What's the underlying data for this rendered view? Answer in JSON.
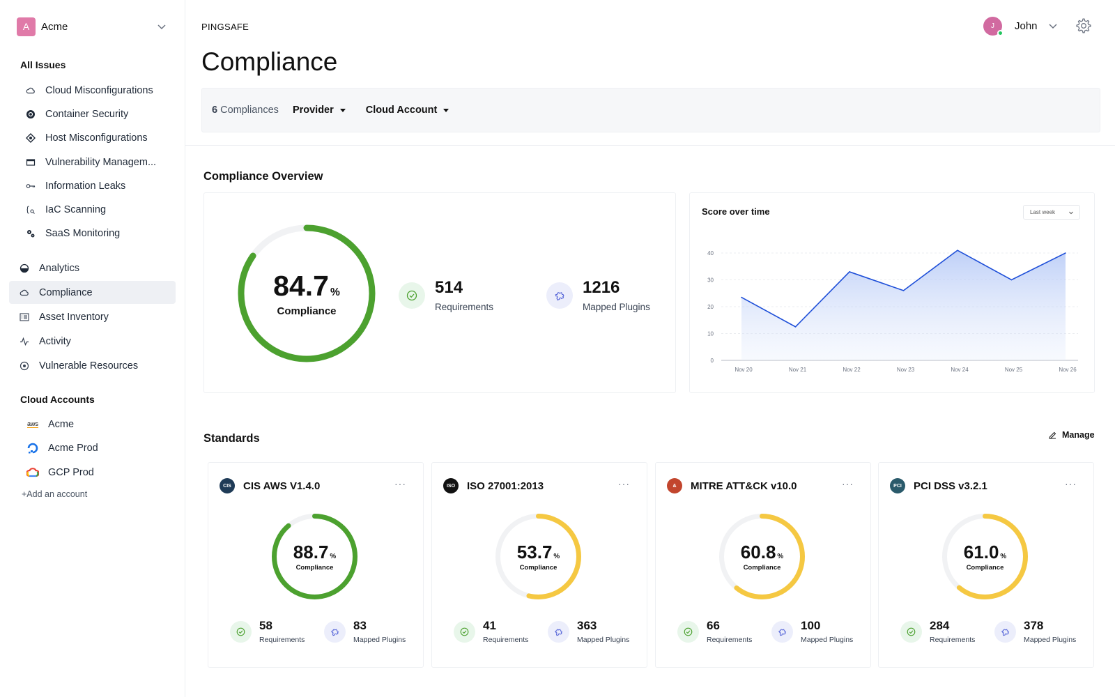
{
  "sidebar": {
    "org": {
      "initial": "A",
      "name": "Acme"
    },
    "all_issues_title": "All Issues",
    "issue_items": [
      {
        "label": "Cloud Misconfigurations",
        "icon": "cloud-icon"
      },
      {
        "label": "Container Security",
        "icon": "container-icon"
      },
      {
        "label": "Host Misconfigurations",
        "icon": "host-icon"
      },
      {
        "label": "Vulnerability Managem...",
        "icon": "card-icon"
      },
      {
        "label": "Information Leaks",
        "icon": "key-icon"
      },
      {
        "label": "IaC Scanning",
        "icon": "code-icon"
      },
      {
        "label": "SaaS Monitoring",
        "icon": "gears-icon"
      }
    ],
    "main_items": [
      {
        "label": "Analytics",
        "icon": "pie-icon"
      },
      {
        "label": "Compliance",
        "icon": "cloud-icon",
        "active": true
      },
      {
        "label": "Asset Inventory",
        "icon": "list-icon"
      },
      {
        "label": "Activity",
        "icon": "activity-icon"
      },
      {
        "label": "Vulnerable Resources",
        "icon": "target-icon"
      }
    ],
    "cloud_accounts_title": "Cloud Accounts",
    "accounts": [
      {
        "label": "Acme",
        "icon": "aws-icon",
        "icon_text": "aws"
      },
      {
        "label": "Acme Prod",
        "icon": "digitalocean-icon"
      },
      {
        "label": "GCP Prod",
        "icon": "gcp-icon"
      }
    ],
    "add_account": "+Add an account"
  },
  "header": {
    "brand": "PINGSAFE",
    "title": "Compliance",
    "user": {
      "initial": "J",
      "name": "John",
      "status_color": "#22c55e"
    }
  },
  "filters": {
    "count": "6",
    "count_label": "Compliances",
    "provider": "Provider",
    "cloud_account": "Cloud Account"
  },
  "overview": {
    "title": "Compliance Overview",
    "compliance_value": 84.7,
    "compliance_display": "84.7",
    "percent_sign": "%",
    "compliance_label": "Compliance",
    "requirements": "514",
    "requirements_label": "Requirements",
    "plugins": "1216",
    "plugins_label": "Mapped Plugins",
    "accent": "#4ca12f"
  },
  "score_chart": {
    "title": "Score over time",
    "range": "Last week",
    "chart_data": {
      "type": "area",
      "categories": [
        "Nov 20",
        "Nov 21",
        "Nov 22",
        "Nov 23",
        "Nov 24",
        "Nov 25",
        "Nov 26"
      ],
      "values": [
        23.5,
        12.5,
        33,
        26,
        41,
        30,
        40
      ],
      "yticks": [
        "0",
        "10",
        "20",
        "30",
        "40"
      ],
      "ylim": [
        0,
        40
      ],
      "line_color": "#1d4ed8",
      "grid": true
    }
  },
  "standards": {
    "title": "Standards",
    "manage": "Manage",
    "items": [
      {
        "name": "CIS AWS V1.4.0",
        "logo_text": "CIS",
        "logo_color": "#1f3b57",
        "value": 88.7,
        "display": "88.7",
        "color": "#4ca12f",
        "requirements": "58",
        "plugins": "83"
      },
      {
        "name": "ISO 27001:2013",
        "logo_text": "ISO",
        "logo_color": "#111111",
        "value": 53.7,
        "display": "53.7",
        "color": "#f5c842",
        "requirements": "41",
        "plugins": "363"
      },
      {
        "name": "MITRE ATT&CK v10.0",
        "logo_text": "&",
        "logo_color": "#c2452d",
        "value": 60.8,
        "display": "60.8",
        "color": "#f5c842",
        "requirements": "66",
        "plugins": "100"
      },
      {
        "name": "PCI DSS v3.2.1",
        "logo_text": "PCI",
        "logo_color": "#2a5a6b",
        "value": 61.0,
        "display": "61.0",
        "color": "#f5c842",
        "requirements": "284",
        "plugins": "378"
      }
    ],
    "percent_sign": "%",
    "compliance_label": "Compliance",
    "requirements_label": "Requirements",
    "plugins_label": "Mapped Plugins"
  }
}
